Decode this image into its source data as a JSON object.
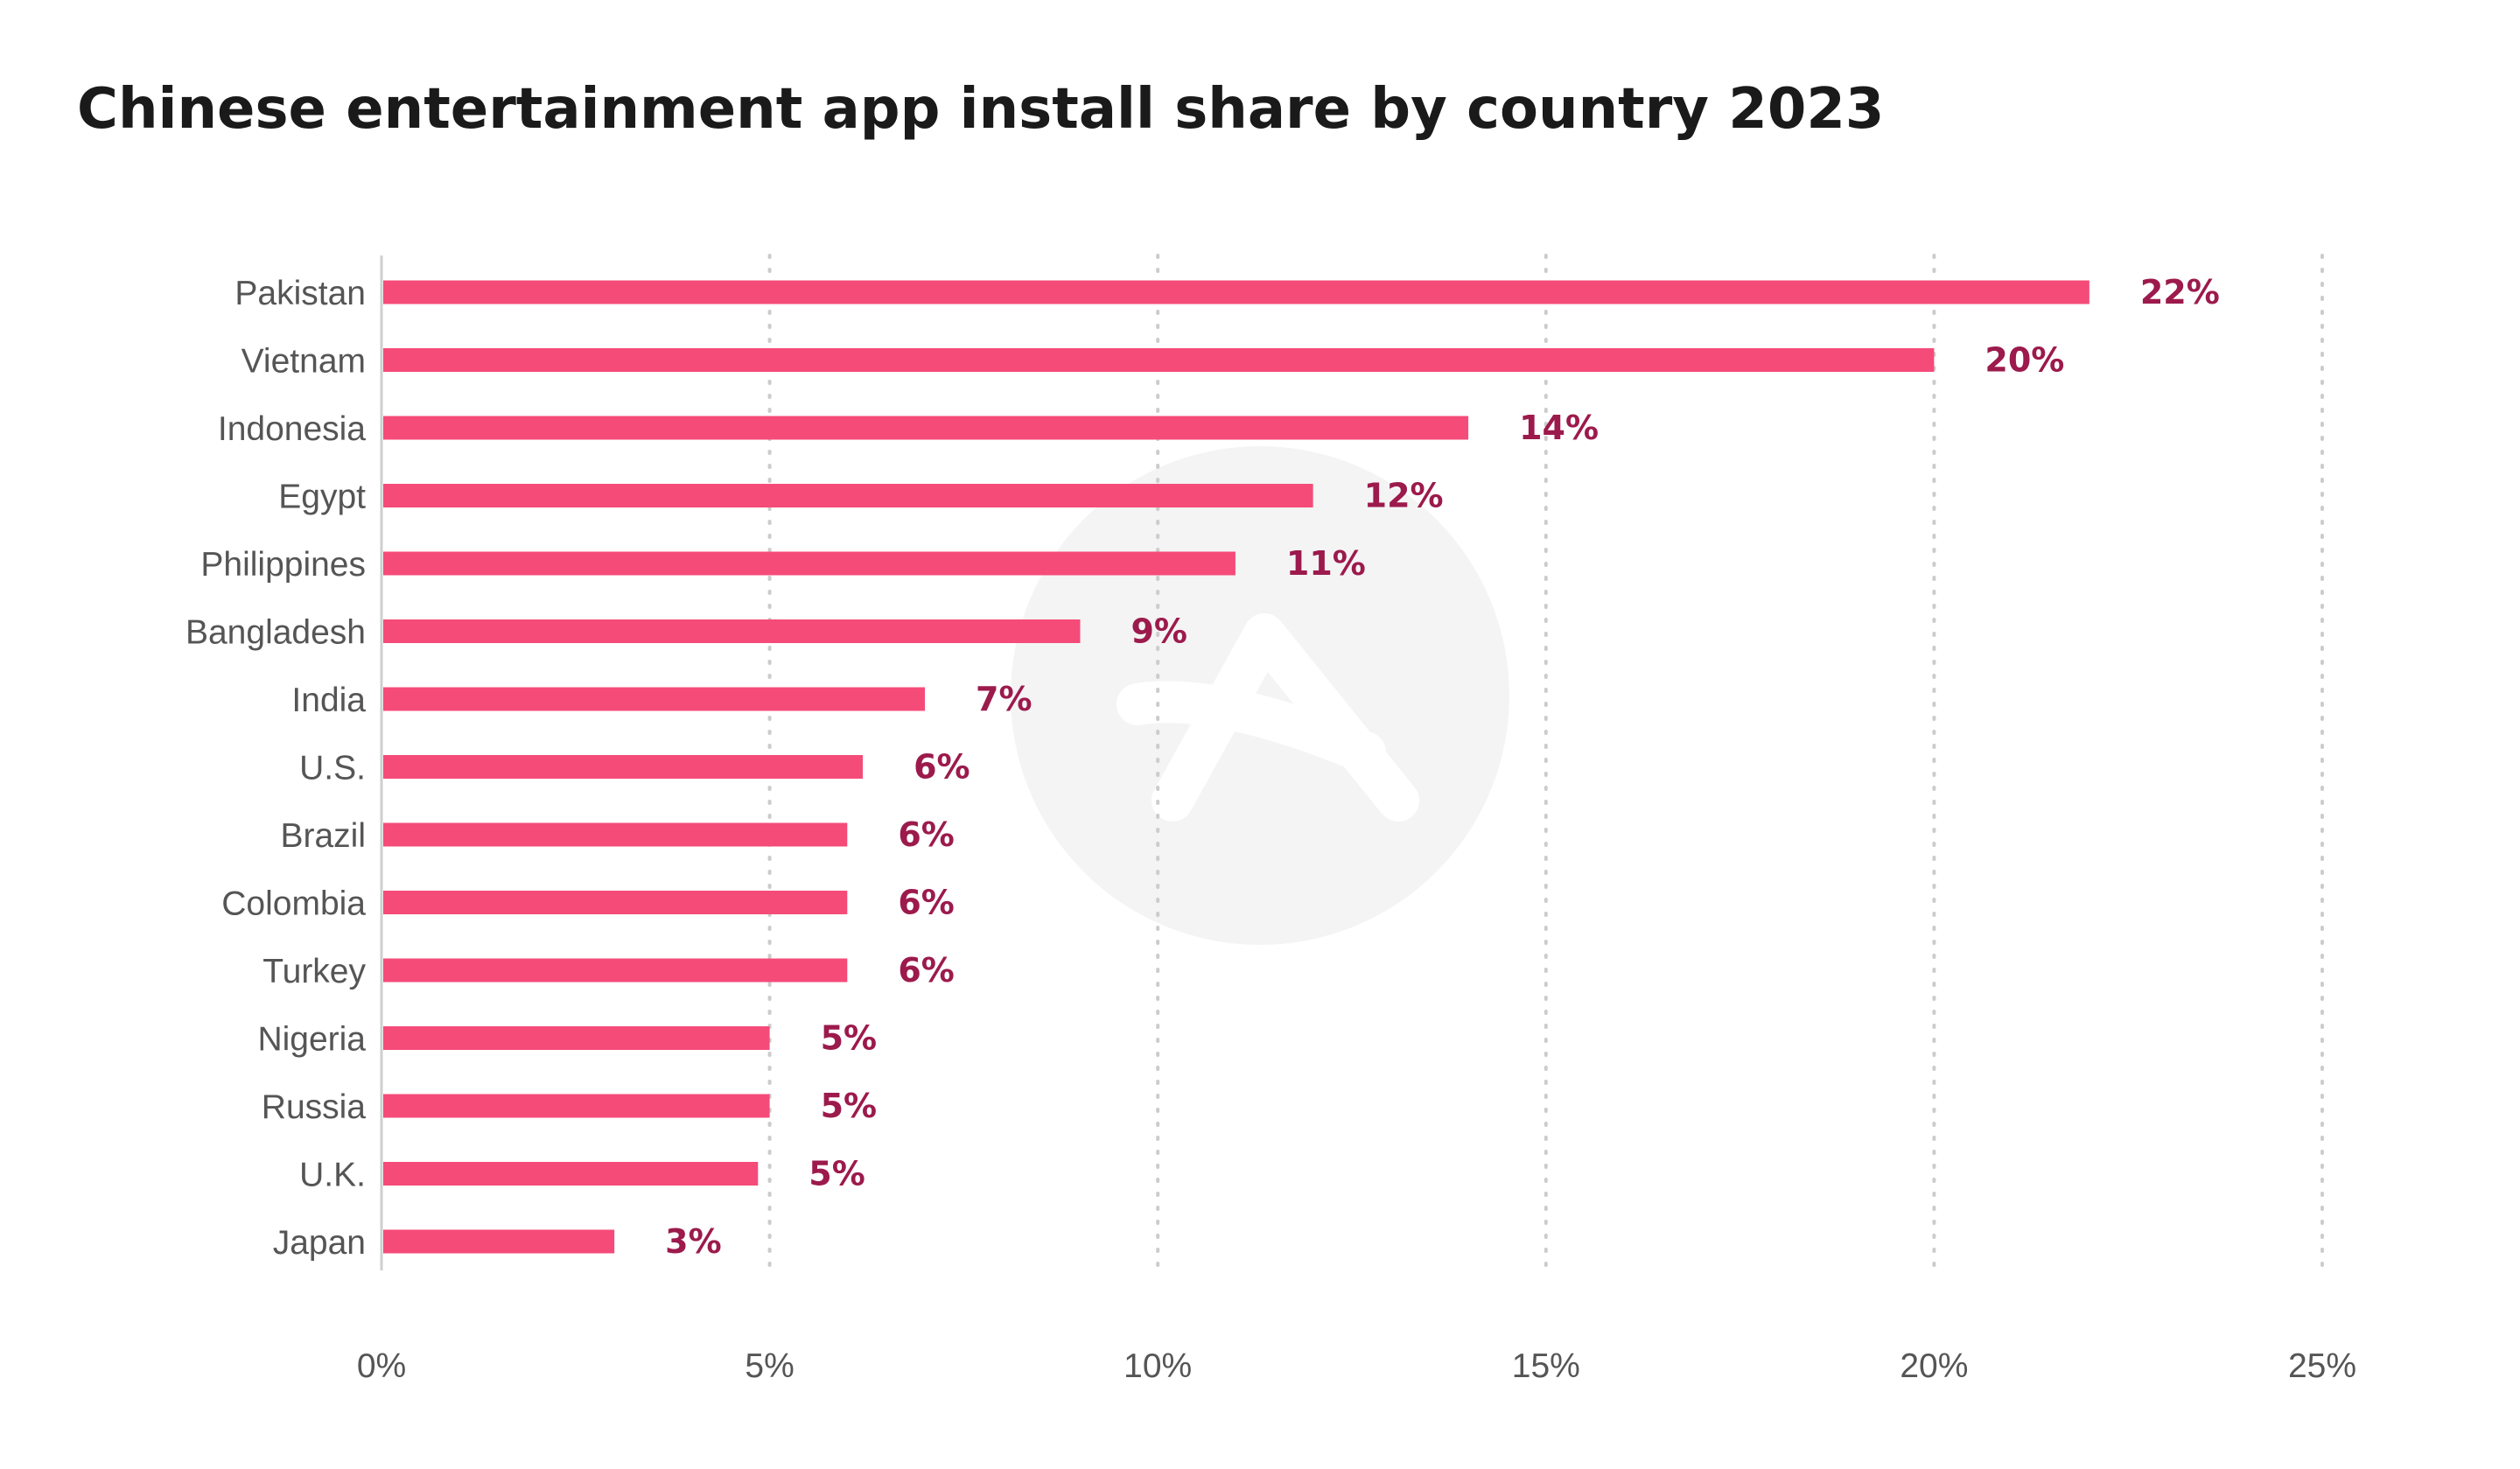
{
  "chart_data": {
    "type": "bar",
    "orientation": "horizontal",
    "title": "Chinese entertainment app install share by country 2023",
    "xlabel": "",
    "ylabel": "",
    "categories": [
      "Pakistan",
      "Vietnam",
      "Indonesia",
      "Egypt",
      "Philippines",
      "Bangladesh",
      "India",
      "U.S.",
      "Brazil",
      "Colombia",
      "Turkey",
      "Nigeria",
      "Russia",
      "U.K.",
      "Japan"
    ],
    "values": [
      22,
      20,
      14,
      12,
      11,
      9,
      7,
      6.2,
      6,
      6,
      6,
      5,
      5,
      4.85,
      3
    ],
    "data_labels": [
      "22%",
      "20%",
      "14%",
      "12%",
      "11%",
      "9%",
      "7%",
      "6%",
      "6%",
      "6%",
      "6%",
      "5%",
      "5%",
      "5%",
      "3%"
    ],
    "xlim": [
      0,
      25
    ],
    "xticks": [
      0,
      5,
      10,
      15,
      20,
      25
    ],
    "xtick_labels": [
      "0%",
      "5%",
      "10%",
      "15%",
      "20%",
      "25%"
    ],
    "grid": "vertical dotted",
    "legend": "none",
    "colors": {
      "bar": "#f54b78",
      "value_label": "#9c1a4c",
      "grid": "#cccccc",
      "axis": "#cfcfcf",
      "watermark": "#f4f4f4"
    }
  }
}
